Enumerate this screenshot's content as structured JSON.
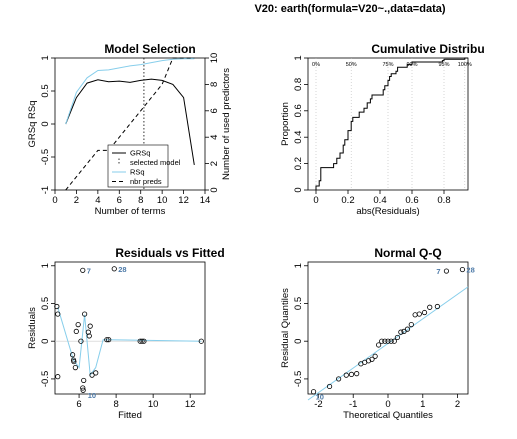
{
  "chart_data": [
    {
      "type": "text",
      "title": "V20: earth(formula=V20~.,data=data)"
    },
    {
      "type": "line",
      "title": "Model Selection",
      "xlabel": "Number of terms",
      "ylabel": "GRSq   RSq",
      "y2label": "Number of used predictors",
      "xlim": [
        0,
        14
      ],
      "ylim": [
        -1,
        1
      ],
      "y2lim": [
        0,
        10
      ],
      "xticks": [
        0,
        2,
        4,
        6,
        8,
        10,
        12,
        14
      ],
      "yticks": [
        -1,
        -0.5,
        0,
        0.5,
        1
      ],
      "y2ticks": [
        0,
        2,
        4,
        6,
        8,
        10
      ],
      "selected_model": 8.3,
      "series": [
        {
          "name": "GRSq",
          "color": "#000000",
          "x": [
            1,
            2,
            3,
            4,
            5,
            6,
            7,
            8,
            9,
            10,
            11,
            12,
            13
          ],
          "y": [
            0.0,
            0.4,
            0.62,
            0.67,
            0.64,
            0.65,
            0.63,
            0.66,
            0.68,
            0.66,
            0.6,
            0.4,
            -0.62
          ]
        },
        {
          "name": "RSq",
          "color": "#87ceeb",
          "x": [
            1,
            2,
            3,
            4,
            5,
            6,
            7,
            8,
            9,
            10,
            11,
            12,
            13
          ],
          "y": [
            0.0,
            0.48,
            0.7,
            0.81,
            0.82,
            0.85,
            0.88,
            0.9,
            0.93,
            0.96,
            0.98,
            0.99,
            0.99
          ]
        },
        {
          "name": "nbr preds",
          "color": "#000000",
          "x": [
            1,
            2,
            3,
            4,
            5,
            6,
            7,
            8,
            9,
            10,
            11,
            12,
            13
          ],
          "y": [
            0,
            1,
            2,
            3,
            3,
            4,
            5,
            6,
            7,
            8,
            10,
            10,
            10
          ]
        }
      ],
      "legend": [
        "GRSq",
        "selected model",
        "RSq",
        "nbr preds"
      ]
    },
    {
      "type": "step",
      "title": "Cumulative Distribu",
      "xlabel": "abs(Residuals)",
      "ylabel": "Proportion",
      "xlim": [
        -0.05,
        0.95
      ],
      "ylim": [
        0,
        1
      ],
      "xticks": [
        0.0,
        0.2,
        0.4,
        0.6,
        0.8
      ],
      "yticks": [
        0.0,
        0.2,
        0.4,
        0.6,
        0.8,
        1.0
      ],
      "quantile_labels": [
        {
          "label": "0%",
          "x": 0.0
        },
        {
          "label": "50%",
          "x": 0.22
        },
        {
          "label": "75%",
          "x": 0.45
        },
        {
          "label": "90%",
          "x": 0.6
        },
        {
          "label": "95%",
          "x": 0.8
        },
        {
          "label": "100%",
          "x": 0.93
        }
      ],
      "x": [
        0.0,
        0.02,
        0.03,
        0.11,
        0.13,
        0.15,
        0.17,
        0.18,
        0.2,
        0.22,
        0.23,
        0.27,
        0.3,
        0.32,
        0.34,
        0.35,
        0.42,
        0.43,
        0.45,
        0.46,
        0.47,
        0.5,
        0.51,
        0.57,
        0.6,
        0.64,
        0.79,
        0.8,
        0.93
      ],
      "y": [
        0.03,
        0.07,
        0.17,
        0.2,
        0.24,
        0.28,
        0.34,
        0.38,
        0.45,
        0.52,
        0.55,
        0.59,
        0.62,
        0.66,
        0.69,
        0.72,
        0.76,
        0.79,
        0.83,
        0.86,
        0.88,
        0.9,
        0.93,
        0.95,
        0.97,
        0.97,
        0.98,
        0.99,
        1.0
      ]
    },
    {
      "type": "scatter",
      "title": "Residuals vs Fitted",
      "xlabel": "Fitted",
      "ylabel": "Residuals",
      "xlim": [
        4.7,
        12.8
      ],
      "ylim": [
        -0.7,
        1.05
      ],
      "xticks": [
        6,
        8,
        10,
        12
      ],
      "yticks": [
        -0.5,
        0.0,
        0.5,
        1.0
      ],
      "points": [
        [
          4.8,
          0.46
        ],
        [
          4.85,
          0.36
        ],
        [
          4.85,
          -0.47
        ],
        [
          5.65,
          -0.18
        ],
        [
          5.7,
          -0.25
        ],
        [
          5.72,
          -0.27
        ],
        [
          5.8,
          -0.35
        ],
        [
          5.85,
          0.13
        ],
        [
          5.95,
          0.22
        ],
        [
          6.1,
          0.0
        ],
        [
          6.2,
          0.94
        ],
        [
          6.25,
          -0.52
        ],
        [
          6.3,
          0.36
        ],
        [
          6.5,
          0.12
        ],
        [
          6.55,
          0.07
        ],
        [
          6.6,
          0.2
        ],
        [
          6.7,
          -0.45
        ],
        [
          6.9,
          -0.42
        ],
        [
          7.5,
          0.02
        ],
        [
          7.6,
          0.02
        ],
        [
          7.9,
          0.96
        ],
        [
          9.3,
          0.0
        ],
        [
          9.4,
          0.0
        ],
        [
          9.5,
          0.0
        ],
        [
          12.6,
          0.0
        ],
        [
          6.2,
          -0.62
        ],
        [
          6.22,
          -0.65
        ]
      ],
      "smooth": {
        "x": [
          4.85,
          5.7,
          6.0,
          6.3,
          6.6,
          6.9,
          7.3,
          7.6,
          12.6
        ],
        "y": [
          0.45,
          -0.25,
          -0.35,
          0.35,
          -0.45,
          -0.35,
          0.02,
          0.02,
          0.0
        ]
      },
      "outliers": [
        {
          "label": "7",
          "x": 6.2,
          "y": 0.94
        },
        {
          "label": "28",
          "x": 7.9,
          "y": 0.96
        },
        {
          "label": "10",
          "x": 6.25,
          "y": -0.62
        }
      ]
    },
    {
      "type": "scatter",
      "title": "Normal Q-Q",
      "xlabel": "Theoretical Quantiles",
      "ylabel": "Residual Quantiles",
      "xlim": [
        -2.3,
        2.3
      ],
      "ylim": [
        -0.7,
        1.05
      ],
      "xticks": [
        -2,
        -1,
        0,
        1,
        2
      ],
      "yticks": [
        -0.5,
        0.0,
        0.5,
        1.0
      ],
      "points": [
        [
          -2.14,
          -0.67
        ],
        [
          -1.68,
          -0.6
        ],
        [
          -1.42,
          -0.5
        ],
        [
          -1.2,
          -0.45
        ],
        [
          -1.05,
          -0.44
        ],
        [
          -0.9,
          -0.43
        ],
        [
          -0.78,
          -0.3
        ],
        [
          -0.67,
          -0.28
        ],
        [
          -0.56,
          -0.26
        ],
        [
          -0.46,
          -0.24
        ],
        [
          -0.37,
          -0.2
        ],
        [
          -0.27,
          -0.05
        ],
        [
          -0.18,
          0.0
        ],
        [
          -0.09,
          0.0
        ],
        [
          0.0,
          0.0
        ],
        [
          0.09,
          0.0
        ],
        [
          0.18,
          0.0
        ],
        [
          0.27,
          0.05
        ],
        [
          0.37,
          0.12
        ],
        [
          0.46,
          0.13
        ],
        [
          0.56,
          0.16
        ],
        [
          0.67,
          0.22
        ],
        [
          0.78,
          0.35
        ],
        [
          0.9,
          0.36
        ],
        [
          1.05,
          0.38
        ],
        [
          1.2,
          0.45
        ],
        [
          1.42,
          0.46
        ],
        [
          1.68,
          0.93
        ],
        [
          2.14,
          0.95
        ]
      ],
      "qq_line": {
        "x": [
          -2.3,
          2.3
        ],
        "y": [
          -0.78,
          0.72
        ]
      },
      "outliers": [
        {
          "label": "7",
          "x": 1.68,
          "y": 0.93
        },
        {
          "label": "28",
          "x": 2.14,
          "y": 0.95
        },
        {
          "label": "10",
          "x": -2.14,
          "y": -0.67
        }
      ]
    }
  ]
}
